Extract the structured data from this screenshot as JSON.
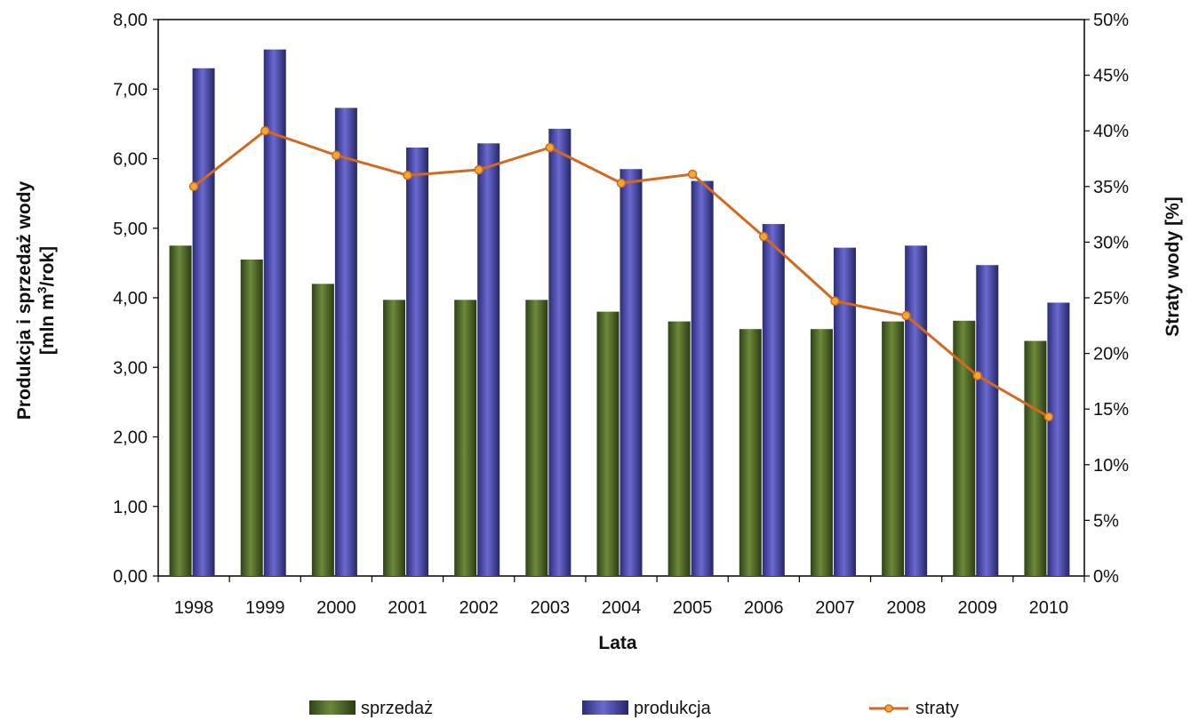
{
  "chart_data": {
    "type": "bar",
    "categories": [
      "1998",
      "1999",
      "2000",
      "2001",
      "2002",
      "2003",
      "2004",
      "2005",
      "2006",
      "2007",
      "2008",
      "2009",
      "2010"
    ],
    "series": [
      {
        "name": "sprzedaż",
        "type": "bar",
        "axis": "left",
        "color": "#4f6b2a",
        "values": [
          4.75,
          4.55,
          4.2,
          3.97,
          3.97,
          3.97,
          3.8,
          3.66,
          3.55,
          3.55,
          3.66,
          3.67,
          3.38
        ]
      },
      {
        "name": "produkcja",
        "type": "bar",
        "axis": "left",
        "color": "#4a4aa8",
        "values": [
          7.3,
          7.57,
          6.73,
          6.16,
          6.22,
          6.43,
          5.85,
          5.68,
          5.06,
          4.72,
          4.75,
          4.47,
          3.93
        ]
      },
      {
        "name": "straty",
        "type": "line",
        "axis": "right",
        "color": "#d2691e",
        "marker_color": "#f0a830",
        "values": [
          35.0,
          40.0,
          37.8,
          36.0,
          36.5,
          38.5,
          35.3,
          36.1,
          30.5,
          24.7,
          23.4,
          18.0,
          14.3
        ]
      }
    ],
    "xlabel": "Lata",
    "ylabel_line1": "Produkcja i sprzedaż wody",
    "ylabel_line2_pre": "[mln m",
    "ylabel_sup": "3",
    "ylabel_line2_post": "/rok]",
    "y2label": "Straty wody [%]",
    "ylim": [
      0,
      8
    ],
    "y2lim": [
      0,
      50
    ],
    "yticks": [
      "0,00",
      "1,00",
      "2,00",
      "3,00",
      "4,00",
      "5,00",
      "6,00",
      "7,00",
      "8,00"
    ],
    "y2ticks": [
      "0%",
      "5%",
      "10%",
      "15%",
      "20%",
      "25%",
      "30%",
      "35%",
      "40%",
      "45%",
      "50%"
    ],
    "grid": false,
    "legend_position": "bottom"
  }
}
